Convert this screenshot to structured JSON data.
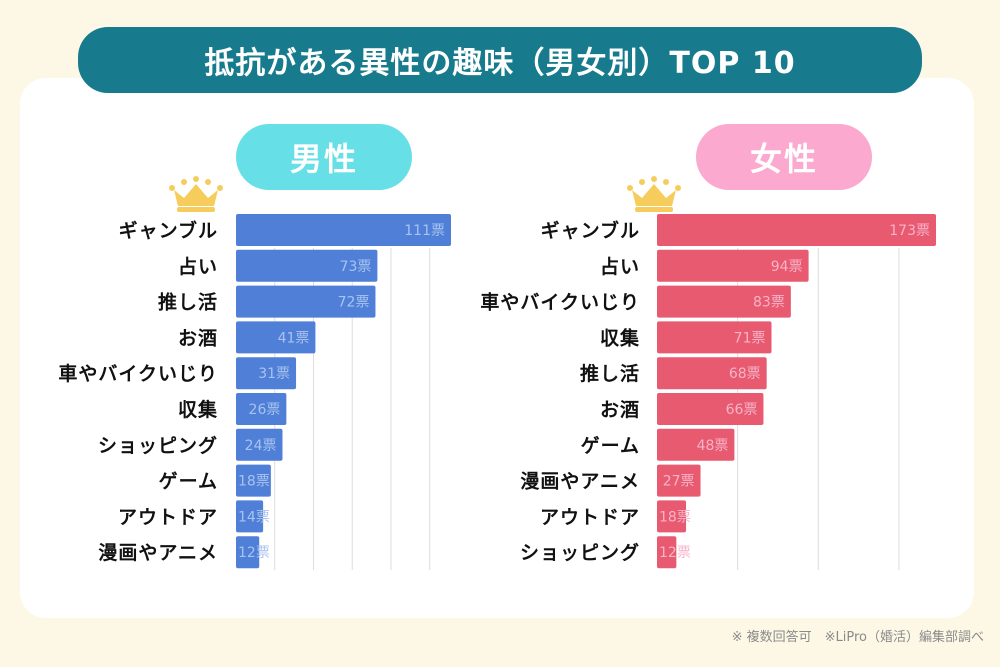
{
  "title": "抵抗がある異性の趣味（男女別）TOP 10",
  "footer": "※ 複数回答可　※LiPro（婚活）編集部調べ",
  "colors": {
    "background": "#fdf8e6",
    "title_bar": "#177b8d",
    "male_pill": "#67dfe6",
    "female_pill": "#fba9cf",
    "male_bar": "#4f7fd6",
    "female_bar": "#e85a70",
    "male_value_text": "#a9c3f0",
    "female_value_text": "#f7b3c8",
    "crown": "#f6cd5c"
  },
  "chart_data": [
    {
      "type": "bar",
      "orientation": "horizontal",
      "title": "男性",
      "unit": "票",
      "categories": [
        "ギャンブル",
        "占い",
        "推し活",
        "お酒",
        "車やバイクいじり",
        "収集",
        "ショッピング",
        "ゲーム",
        "アウトドア",
        "漫画やアニメ"
      ],
      "values": [
        111,
        73,
        72,
        41,
        31,
        26,
        24,
        18,
        14,
        12
      ],
      "xlim": [
        0,
        120
      ],
      "grid": true,
      "grid_step": 20,
      "legend": "none"
    },
    {
      "type": "bar",
      "orientation": "horizontal",
      "title": "女性",
      "unit": "票",
      "categories": [
        "ギャンブル",
        "占い",
        "車やバイクいじり",
        "収集",
        "推し活",
        "お酒",
        "ゲーム",
        "漫画やアニメ",
        "アウトドア",
        "ショッピング"
      ],
      "values": [
        173,
        94,
        83,
        71,
        68,
        66,
        48,
        27,
        18,
        12
      ],
      "xlim": [
        0,
        180
      ],
      "grid": true,
      "grid_step": 50,
      "legend": "none"
    }
  ]
}
